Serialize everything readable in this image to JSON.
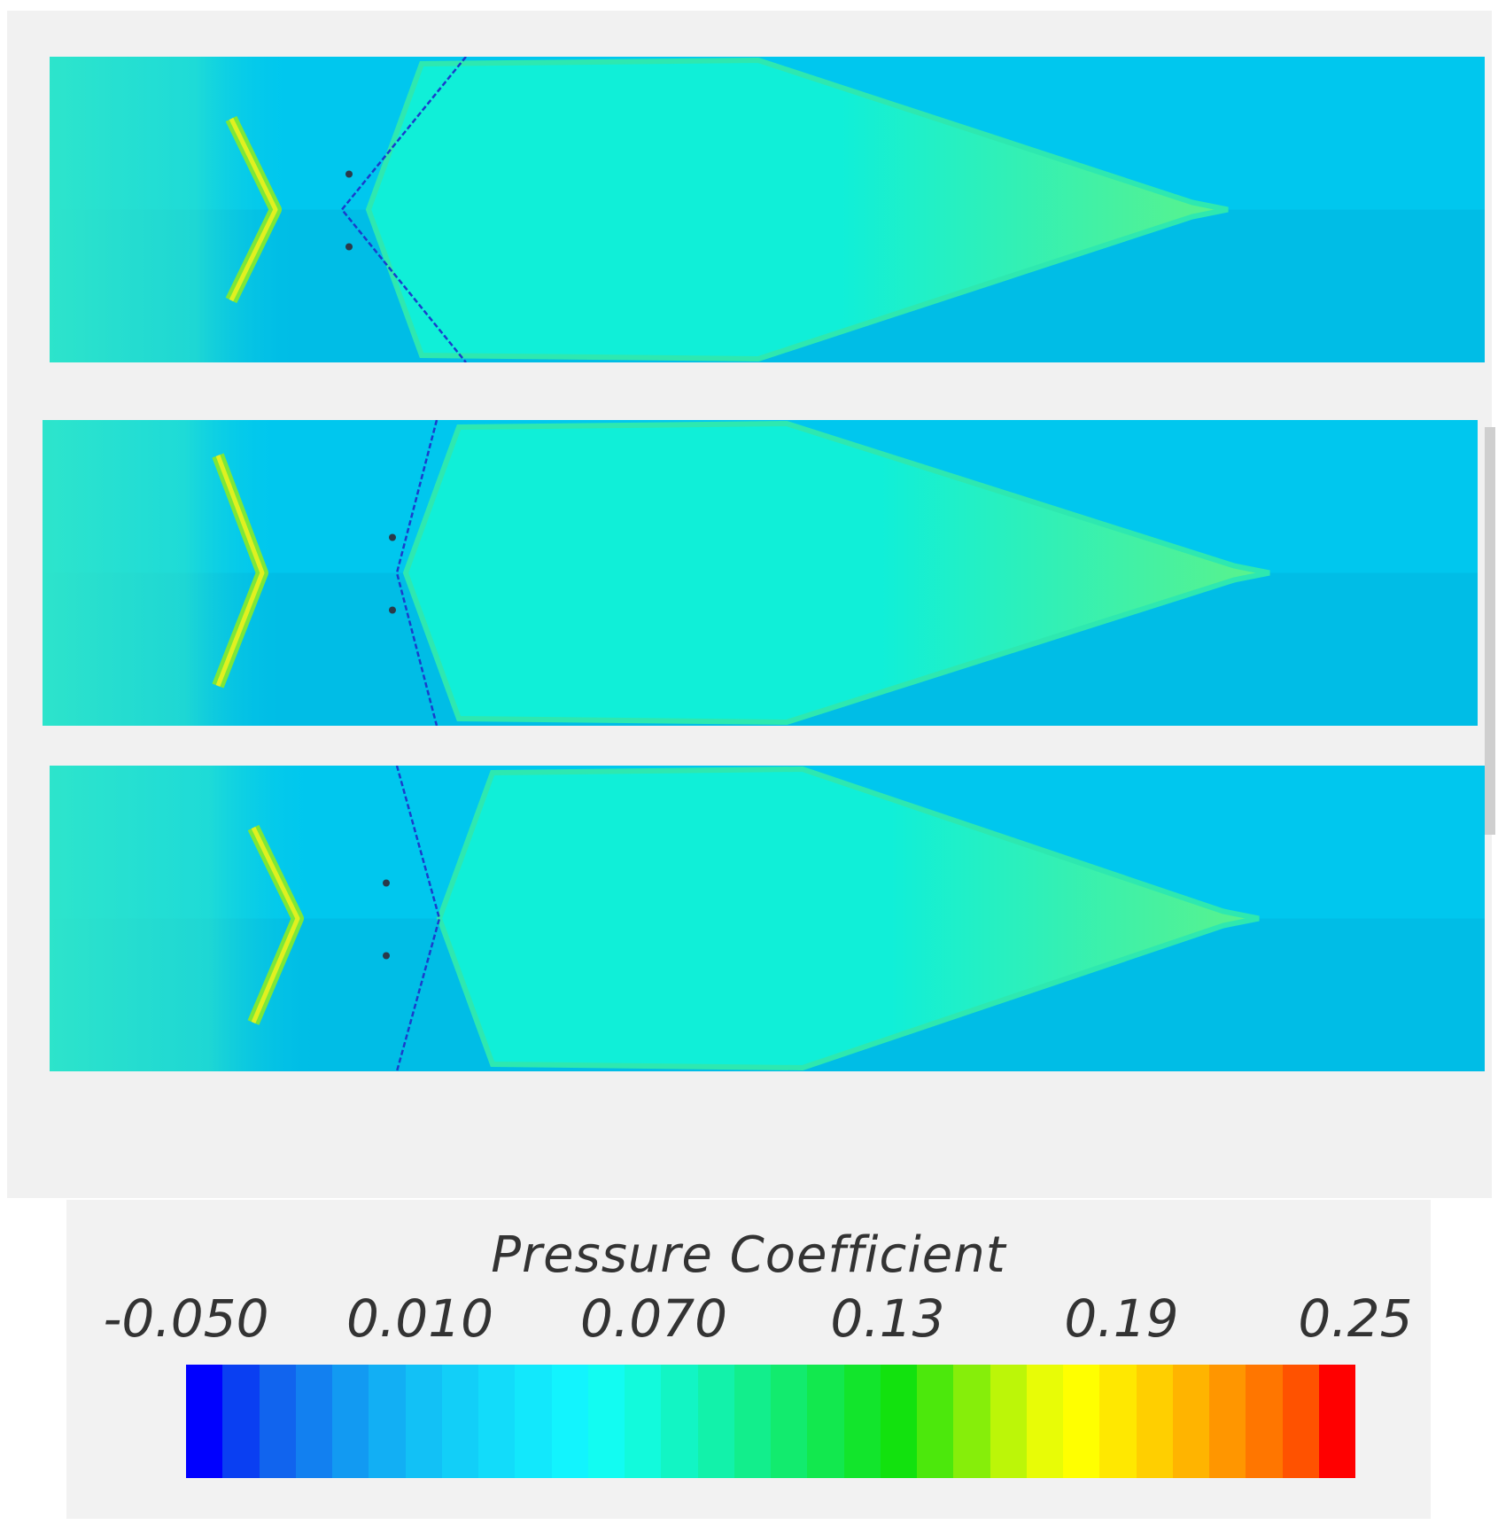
{
  "chart_data": {
    "type": "heatmap",
    "description_type": "contour",
    "panels": [
      {
        "id": 1
      },
      {
        "id": 2
      },
      {
        "id": 3
      }
    ],
    "colorbar": {
      "title": "Pressure Coefficient",
      "min": -0.05,
      "max": 0.25,
      "tick_labels": [
        "-0.050",
        "0.010",
        "0.070",
        "0.13",
        "0.19",
        "0.25"
      ],
      "tick_values": [
        -0.05,
        0.01,
        0.07,
        0.13,
        0.19,
        0.25
      ],
      "levels": 32,
      "colors": [
        "#0000ff",
        "#0a3ff2",
        "#1164ee",
        "#1280f0",
        "#129af2",
        "#12aff4",
        "#12c1f6",
        "#12cff8",
        "#12dcfa",
        "#12e8fc",
        "#12f4fe",
        "#12fcf2",
        "#12fadc",
        "#12f5c4",
        "#12f2aa",
        "#12ee8c",
        "#12eb6e",
        "#12e84e",
        "#12e52c",
        "#12e20e",
        "#4ce80c",
        "#86ee0a",
        "#bcf608",
        "#e8fc06",
        "#ffff00",
        "#ffe800",
        "#ffcf00",
        "#ffb400",
        "#ff9600",
        "#ff7600",
        "#ff5200",
        "#ff0000"
      ]
    },
    "field_colors": {
      "background": "#00c7ee",
      "lower_half": "#00bde6",
      "low_pressure_line": "#1a3ccc",
      "body_fill": "#10efd8",
      "body_edge": "#2ee8b0",
      "tip_fill": "#5cf28a",
      "shock_edge": "#7ce838",
      "shock_core": "#e0f020",
      "shock_peak": "#f6f200",
      "front_zone": "#32e8c8"
    }
  }
}
